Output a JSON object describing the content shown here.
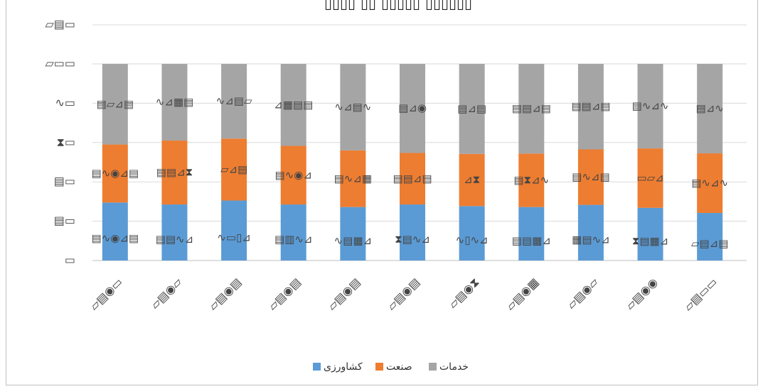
{
  "chart_data": {
    "type": "bar",
    "stacked": true,
    "percent_stacked": true,
    "title": "▯▯▯▯ ▯▯ ▯▯▯▯▯ ▯▯▯▯▯▯",
    "categories": [
      "▱▤◉▭",
      "▱▤◉▱",
      "▱▤◉▤",
      "▱▤◉▤",
      "▱▤◉▤",
      "▱▤◉▤",
      "▱▤◉⧗",
      "▱▤◉▦",
      "▱▤◉▱",
      "▱▤◉◉",
      "▱▤▭▭"
    ],
    "series": [
      {
        "name": "کشاورزی",
        "color": "#5b9bd5",
        "values": [
          29.5,
          28.5,
          30.5,
          28.5,
          27.2,
          28.5,
          27.7,
          27.2,
          28.3,
          26.8,
          24.2
        ],
        "labels": [
          "▤∿◉⊿▤",
          "▤▤∿⊿",
          "∿▭▯⊿",
          "▤▥∿⊿",
          "∿▤▦⊿",
          "⧗▤∿⊿",
          "∿▯∿⊿",
          "▤▤▦⊿",
          "▦▤∿⊿",
          "⧗▤▦⊿",
          "▱▤⊿▤"
        ]
      },
      {
        "name": "صنعت",
        "color": "#ed7d31",
        "values": [
          29.5,
          32.5,
          31.5,
          29.8,
          28.8,
          26.2,
          26.5,
          27.2,
          28.2,
          30.2,
          30.3
        ],
        "labels": [
          "▤∿◉⊿▤",
          "▤▤⊿⧗",
          "▱⊿▤",
          "▤∿◉⊿",
          "▤∿⊿▦",
          "▤▤⊿▤",
          "⊿⧗",
          "▤⧗⊿∿",
          "▤∿⊿▤",
          "▭▱⊿",
          "▤∿⊿∿"
        ]
      },
      {
        "name": "خدمات",
        "color": "#a5a5a5",
        "values": [
          41.0,
          39.0,
          38.0,
          41.7,
          44.0,
          45.3,
          45.8,
          45.6,
          43.5,
          43.0,
          45.5
        ],
        "labels": [
          "▤▱⊿▤",
          "∿⊿▦▤",
          "∿⊿▤▱",
          "⊿▦▤▤",
          "∿⊿▤∿",
          "▤⊿◉",
          "▤⊿▤",
          "▤▤⊿▤",
          "▤▤⊿▤",
          "▤∿⊿∿",
          "▤⊿∿"
        ]
      }
    ],
    "y_tick_labels": [
      "▭",
      "▤▭",
      "▤▭",
      "⧗▭",
      "∿▭",
      "▱▭▭",
      "▱▤▭"
    ],
    "ylim": [
      0,
      100
    ],
    "grid": true,
    "legend_position": "bottom"
  }
}
